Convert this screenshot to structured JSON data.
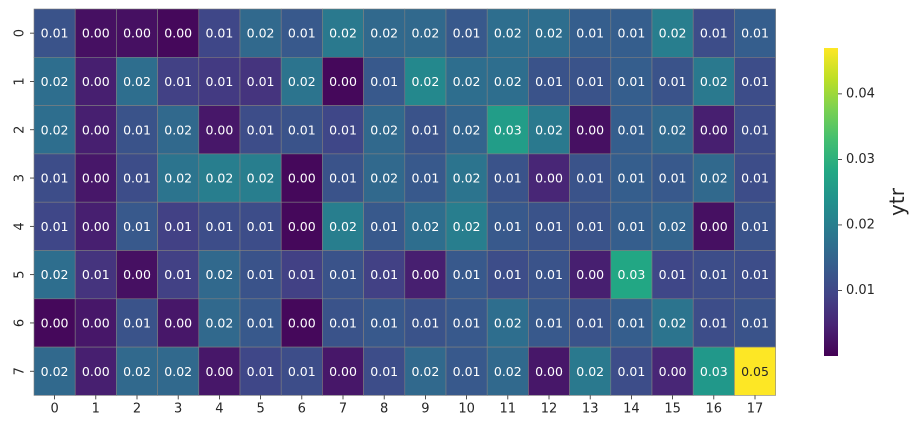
{
  "chart_data": {
    "type": "heatmap",
    "x_categories": [
      "0",
      "1",
      "2",
      "3",
      "4",
      "5",
      "6",
      "7",
      "8",
      "9",
      "10",
      "11",
      "12",
      "13",
      "14",
      "15",
      "16",
      "17"
    ],
    "y_categories": [
      "0",
      "1",
      "2",
      "3",
      "4",
      "5",
      "6",
      "7"
    ],
    "values": [
      [
        0.012,
        0.002,
        0.002,
        0.001,
        0.01,
        0.016,
        0.013,
        0.019,
        0.016,
        0.016,
        0.013,
        0.017,
        0.017,
        0.014,
        0.014,
        0.02,
        0.011,
        0.014
      ],
      [
        0.017,
        0.004,
        0.017,
        0.009,
        0.008,
        0.007,
        0.018,
        0.001,
        0.013,
        0.022,
        0.017,
        0.017,
        0.012,
        0.012,
        0.014,
        0.012,
        0.019,
        0.011
      ],
      [
        0.017,
        0.004,
        0.012,
        0.016,
        0.003,
        0.011,
        0.012,
        0.01,
        0.016,
        0.012,
        0.015,
        0.026,
        0.019,
        0.002,
        0.014,
        0.016,
        0.004,
        0.011
      ],
      [
        0.011,
        0.003,
        0.011,
        0.018,
        0.02,
        0.02,
        0.001,
        0.012,
        0.016,
        0.013,
        0.018,
        0.012,
        0.005,
        0.012,
        0.014,
        0.013,
        0.016,
        0.011
      ],
      [
        0.01,
        0.004,
        0.013,
        0.009,
        0.011,
        0.011,
        0.001,
        0.02,
        0.013,
        0.017,
        0.02,
        0.013,
        0.012,
        0.012,
        0.014,
        0.015,
        0.002,
        0.012
      ],
      [
        0.017,
        0.007,
        0.002,
        0.009,
        0.016,
        0.012,
        0.009,
        0.012,
        0.009,
        0.004,
        0.013,
        0.011,
        0.012,
        0.004,
        0.028,
        0.01,
        0.011,
        0.011
      ],
      [
        0.001,
        0.003,
        0.012,
        0.003,
        0.016,
        0.013,
        0.001,
        0.012,
        0.013,
        0.012,
        0.013,
        0.017,
        0.013,
        0.012,
        0.014,
        0.018,
        0.011,
        0.012
      ],
      [
        0.016,
        0.004,
        0.016,
        0.016,
        0.003,
        0.01,
        0.011,
        0.003,
        0.011,
        0.016,
        0.013,
        0.016,
        0.003,
        0.019,
        0.011,
        0.005,
        0.025,
        0.047
      ]
    ],
    "labels": [
      [
        "0.01",
        "0.00",
        "0.00",
        "0.00",
        "0.01",
        "0.02",
        "0.01",
        "0.02",
        "0.02",
        "0.02",
        "0.01",
        "0.02",
        "0.02",
        "0.01",
        "0.01",
        "0.02",
        "0.01",
        "0.01"
      ],
      [
        "0.02",
        "0.00",
        "0.02",
        "0.01",
        "0.01",
        "0.01",
        "0.02",
        "0.00",
        "0.01",
        "0.02",
        "0.02",
        "0.02",
        "0.01",
        "0.01",
        "0.01",
        "0.01",
        "0.02",
        "0.01"
      ],
      [
        "0.02",
        "0.00",
        "0.01",
        "0.02",
        "0.00",
        "0.01",
        "0.01",
        "0.01",
        "0.02",
        "0.01",
        "0.02",
        "0.03",
        "0.02",
        "0.00",
        "0.01",
        "0.02",
        "0.00",
        "0.01"
      ],
      [
        "0.01",
        "0.00",
        "0.01",
        "0.02",
        "0.02",
        "0.02",
        "0.00",
        "0.01",
        "0.02",
        "0.01",
        "0.02",
        "0.01",
        "0.00",
        "0.01",
        "0.01",
        "0.01",
        "0.02",
        "0.01"
      ],
      [
        "0.01",
        "0.00",
        "0.01",
        "0.01",
        "0.01",
        "0.01",
        "0.00",
        "0.02",
        "0.01",
        "0.02",
        "0.02",
        "0.01",
        "0.01",
        "0.01",
        "0.01",
        "0.02",
        "0.00",
        "0.01"
      ],
      [
        "0.02",
        "0.01",
        "0.00",
        "0.01",
        "0.02",
        "0.01",
        "0.01",
        "0.01",
        "0.01",
        "0.00",
        "0.01",
        "0.01",
        "0.01",
        "0.00",
        "0.03",
        "0.01",
        "0.01",
        "0.01"
      ],
      [
        "0.00",
        "0.00",
        "0.01",
        "0.00",
        "0.02",
        "0.01",
        "0.00",
        "0.01",
        "0.01",
        "0.01",
        "0.01",
        "0.02",
        "0.01",
        "0.01",
        "0.01",
        "0.02",
        "0.01",
        "0.01"
      ],
      [
        "0.02",
        "0.00",
        "0.02",
        "0.02",
        "0.00",
        "0.01",
        "0.01",
        "0.00",
        "0.01",
        "0.02",
        "0.01",
        "0.02",
        "0.00",
        "0.02",
        "0.01",
        "0.00",
        "0.03",
        "0.05"
      ]
    ],
    "colorscale": "viridis",
    "vmin": 0.0,
    "vmax": 0.047,
    "colorbar": {
      "label": "ytr",
      "ticks": [
        0.01,
        0.02,
        0.03,
        0.04
      ],
      "tick_labels": [
        "0.01",
        "0.02",
        "0.03",
        "0.04"
      ]
    },
    "cell_border_color": "#808080",
    "annotation_colors": {
      "dark_bg_text": "#ffffff",
      "light_bg_text": "#262626"
    },
    "grid": false,
    "legend": "colorbar-right"
  }
}
